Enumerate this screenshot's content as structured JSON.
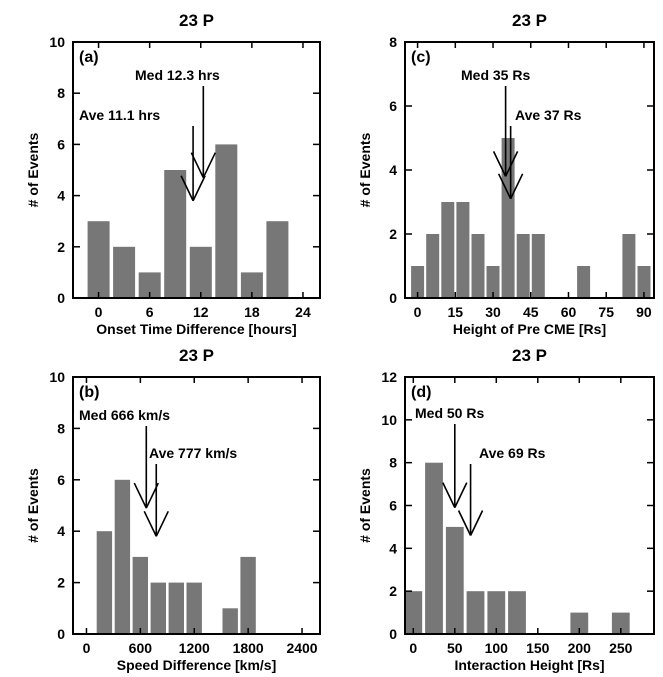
{
  "chart_data": [
    {
      "type": "bar",
      "title": "23 P",
      "panel_label": "(a)",
      "xlabel": "Onset Time Difference [hours]",
      "ylabel": "# of Events",
      "xlim": [
        -3,
        26
      ],
      "ylim": [
        0,
        10
      ],
      "xticks": [
        0,
        6,
        12,
        18,
        24
      ],
      "yticks": [
        0,
        2,
        4,
        6,
        8,
        10
      ],
      "bin_width": 3,
      "bin_centers": [
        0,
        3,
        6,
        9,
        12,
        15,
        18,
        21
      ],
      "values": [
        3,
        2,
        1,
        5,
        2,
        6,
        1,
        3
      ],
      "median": {
        "label": "Med 12.3 hrs",
        "value": 12.3,
        "arrow_tip": 4.7
      },
      "average": {
        "label": "Ave 11.1 hrs",
        "value": 11.1,
        "arrow_tip": 3.8
      }
    },
    {
      "type": "bar",
      "title": "23 P",
      "panel_label": "(c)",
      "xlabel": "Height of Pre CME [Rs]",
      "ylabel": "# of Events",
      "xlim": [
        -5,
        94
      ],
      "ylim": [
        0,
        8
      ],
      "xticks": [
        0,
        15,
        30,
        45,
        60,
        75,
        90
      ],
      "yticks": [
        0,
        2,
        4,
        6,
        8
      ],
      "bin_width": 6,
      "bin_centers": [
        0,
        6,
        12,
        18,
        24,
        30,
        36,
        42,
        48,
        54,
        60,
        66,
        72,
        78,
        84,
        90
      ],
      "values": [
        1,
        2,
        3,
        3,
        2,
        1,
        5,
        2,
        2,
        0,
        0,
        1,
        0,
        0,
        2,
        1
      ],
      "median": {
        "label": "Med 35 Rs",
        "value": 35,
        "arrow_tip": 3.8
      },
      "average": {
        "label": "Ave 37 Rs",
        "value": 37,
        "arrow_tip": 3.1
      }
    },
    {
      "type": "bar",
      "title": "23 P",
      "panel_label": "(b)",
      "xlabel": "Speed Difference [km/s]",
      "ylabel": "# of Events",
      "xlim": [
        -150,
        2600
      ],
      "ylim": [
        0,
        10
      ],
      "xticks": [
        0,
        600,
        1200,
        1800,
        2400
      ],
      "yticks": [
        0,
        2,
        4,
        6,
        8,
        10
      ],
      "bin_width": 200,
      "bin_centers": [
        200,
        400,
        600,
        800,
        1000,
        1200,
        1400,
        1600,
        1800
      ],
      "values": [
        4,
        6,
        3,
        2,
        2,
        2,
        0,
        1,
        3
      ],
      "median": {
        "label": "Med 666 km/s",
        "value": 666,
        "arrow_tip": 4.9
      },
      "average": {
        "label": "Ave 777 km/s",
        "value": 777,
        "arrow_tip": 3.8
      }
    },
    {
      "type": "bar",
      "title": "23 P",
      "panel_label": "(d)",
      "xlabel": "Interaction Height [Rs]",
      "ylabel": "# of Events",
      "xlim": [
        -10,
        290
      ],
      "ylim": [
        0,
        12
      ],
      "xticks": [
        0,
        50,
        100,
        150,
        200,
        250
      ],
      "yticks": [
        0,
        2,
        4,
        6,
        8,
        10,
        12
      ],
      "bin_width": 25,
      "bin_centers": [
        0,
        25,
        50,
        75,
        100,
        125,
        150,
        175,
        200,
        225,
        250
      ],
      "values": [
        2,
        8,
        5,
        2,
        2,
        2,
        0,
        0,
        1,
        0,
        1
      ],
      "median": {
        "label": "Med 50 Rs",
        "value": 50,
        "arrow_tip": 5.9
      },
      "average": {
        "label": "Ave 69 Rs",
        "value": 69,
        "arrow_tip": 4.6
      }
    }
  ],
  "colors": {
    "bar": "#777777",
    "axis": "#000000",
    "background": "#ffffff"
  }
}
